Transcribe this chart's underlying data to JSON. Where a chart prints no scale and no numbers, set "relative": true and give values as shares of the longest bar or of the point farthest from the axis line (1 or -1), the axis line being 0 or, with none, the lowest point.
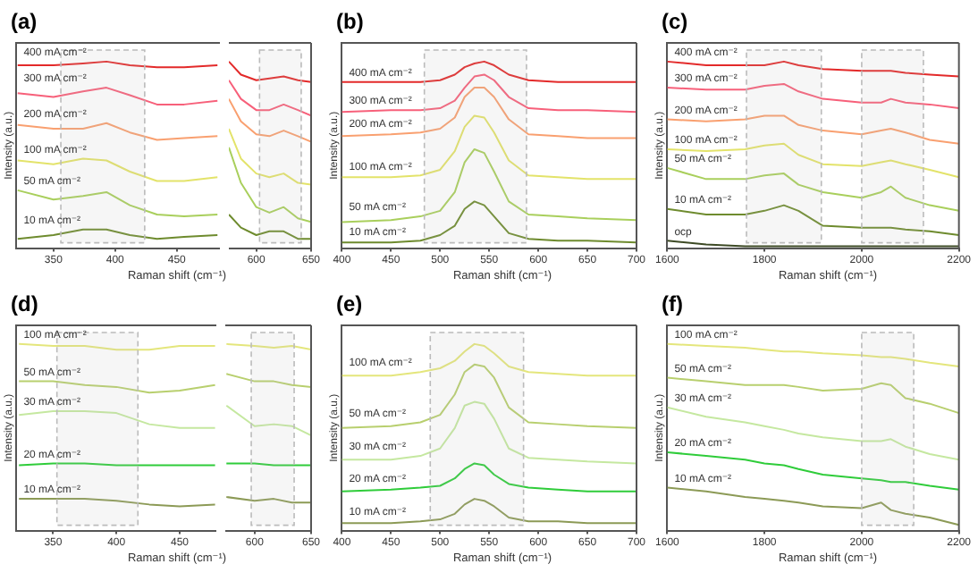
{
  "chart_data": [
    {
      "type": "line",
      "title": "(a)",
      "xlabel": "Raman shift (cm⁻¹)",
      "ylabel": "Intensity (a.u.)",
      "relative": true,
      "marker": "none",
      "xlim": [
        320,
        485
      ],
      "xticks": [
        350,
        400,
        450
      ],
      "x": [
        321,
        350,
        374,
        393,
        412,
        434,
        456,
        483
      ],
      "bands": [
        {
          "axis": "x",
          "from": 356,
          "to": 424,
          "color": "#bbbbbb"
        }
      ],
      "series": [
        {
          "name": "400 mA cm⁻²",
          "color": "#e32a2a",
          "values": [
            0.98,
            0.98,
            0.99,
            1,
            0.98,
            0.97,
            0.97,
            0.98
          ]
        },
        {
          "name": "300 mA cm⁻²",
          "color": "#f7607a",
          "values": [
            0.83,
            0.81,
            0.84,
            0.86,
            0.82,
            0.77,
            0.77,
            0.79
          ]
        },
        {
          "name": "200 mA cm⁻²",
          "color": "#f9a070",
          "values": [
            0.66,
            0.64,
            0.64,
            0.67,
            0.62,
            0.58,
            0.59,
            0.6
          ]
        },
        {
          "name": "100 mA cm⁻²",
          "color": "#e3e36a",
          "values": [
            0.47,
            0.45,
            0.48,
            0.47,
            0.41,
            0.36,
            0.36,
            0.38
          ]
        },
        {
          "name": "50 mA cm⁻²",
          "color": "#a9cf5c",
          "values": [
            0.31,
            0.26,
            0.28,
            0.3,
            0.23,
            0.18,
            0.17,
            0.18
          ]
        },
        {
          "name": "10 mA cm⁻²",
          "color": "#6e8b2e",
          "values": [
            0.05,
            0.07,
            0.1,
            0.1,
            0.07,
            0.05,
            0.06,
            0.07
          ]
        }
      ]
    },
    {
      "type": "line",
      "relative": true,
      "marker": "none",
      "xlim": [
        575,
        650
      ],
      "xticks": [
        600,
        650
      ],
      "x": [
        575,
        586,
        600,
        612,
        625,
        638,
        650
      ],
      "bands": [
        {
          "axis": "x",
          "from": 603,
          "to": 641,
          "color": "#bbbbbb"
        }
      ],
      "series": [
        {
          "color": "#e32a2a",
          "values": [
            1.0,
            0.93,
            0.9,
            0.91,
            0.92,
            0.9,
            0.89
          ]
        },
        {
          "color": "#f7607a",
          "values": [
            0.9,
            0.8,
            0.74,
            0.74,
            0.77,
            0.74,
            0.71
          ]
        },
        {
          "color": "#f9a070",
          "values": [
            0.8,
            0.68,
            0.61,
            0.6,
            0.63,
            0.6,
            0.57
          ]
        },
        {
          "color": "#e3e36a",
          "values": [
            0.64,
            0.48,
            0.4,
            0.38,
            0.4,
            0.35,
            0.34
          ]
        },
        {
          "color": "#a9cf5c",
          "values": [
            0.54,
            0.35,
            0.22,
            0.19,
            0.22,
            0.16,
            0.14
          ]
        },
        {
          "color": "#6e8b2e",
          "values": [
            0.18,
            0.11,
            0.07,
            0.09,
            0.09,
            0.05,
            0.05
          ]
        }
      ]
    },
    {
      "type": "line",
      "title": "(b)",
      "xlabel": "Raman shift (cm⁻¹)",
      "ylabel": "Intensity (a.u.)",
      "relative": true,
      "marker": "none",
      "xlim": [
        400,
        700
      ],
      "xticks": [
        400,
        450,
        500,
        550,
        600,
        650,
        700
      ],
      "x": [
        400,
        450,
        480,
        500,
        515,
        525,
        535,
        545,
        555,
        570,
        590,
        620,
        650,
        700
      ],
      "bands": [
        {
          "axis": "x",
          "from": 484,
          "to": 588,
          "color": "#bbbbbb"
        }
      ],
      "series": [
        {
          "name": "400 mA cm⁻²",
          "color": "#e32a2a",
          "values": [
            0.89,
            0.89,
            0.89,
            0.9,
            0.93,
            0.97,
            0.99,
            1,
            0.98,
            0.93,
            0.9,
            0.89,
            0.89,
            0.89
          ]
        },
        {
          "name": "300 mA cm⁻²",
          "color": "#f7607a",
          "values": [
            0.73,
            0.74,
            0.74,
            0.75,
            0.79,
            0.86,
            0.92,
            0.93,
            0.9,
            0.81,
            0.75,
            0.74,
            0.74,
            0.73
          ]
        },
        {
          "name": "200 mA cm⁻²",
          "color": "#f9a070",
          "values": [
            0.6,
            0.61,
            0.62,
            0.64,
            0.7,
            0.81,
            0.86,
            0.86,
            0.81,
            0.69,
            0.61,
            0.6,
            0.59,
            0.59
          ]
        },
        {
          "name": "100 mA cm⁻²",
          "color": "#e3e36a",
          "values": [
            0.38,
            0.38,
            0.39,
            0.42,
            0.52,
            0.65,
            0.71,
            0.7,
            0.62,
            0.47,
            0.39,
            0.38,
            0.37,
            0.37
          ]
        },
        {
          "name": "50 mA cm⁻²",
          "color": "#a9cf5c",
          "values": [
            0.14,
            0.15,
            0.17,
            0.2,
            0.3,
            0.46,
            0.53,
            0.51,
            0.41,
            0.25,
            0.18,
            0.17,
            0.16,
            0.15
          ]
        },
        {
          "name": "10 mA cm⁻²",
          "color": "#6e8b2e",
          "values": [
            0.03,
            0.03,
            0.04,
            0.07,
            0.12,
            0.21,
            0.25,
            0.23,
            0.17,
            0.08,
            0.05,
            0.04,
            0.04,
            0.03
          ]
        }
      ]
    },
    {
      "type": "line",
      "title": "(c)",
      "xlabel": "Raman shift (cm⁻¹)",
      "ylabel": "Intensity (a.u.)",
      "relative": true,
      "marker": "none",
      "xlim": [
        1600,
        2200
      ],
      "xticks": [
        1600,
        1800,
        2000,
        2200
      ],
      "x": [
        1600,
        1680,
        1760,
        1800,
        1840,
        1870,
        1920,
        2000,
        2040,
        2060,
        2090,
        2140,
        2200
      ],
      "bands": [
        {
          "axis": "x",
          "from": 1763,
          "to": 1917,
          "color": "#bbbbbb"
        },
        {
          "axis": "x",
          "from": 2000,
          "to": 2127,
          "color": "#bbbbbb"
        }
      ],
      "series": [
        {
          "name": "400 mA cm⁻²",
          "color": "#e32a2a",
          "values": [
            1.0,
            0.98,
            0.98,
            0.98,
            1.0,
            0.98,
            0.96,
            0.95,
            0.95,
            0.95,
            0.94,
            0.93,
            0.92
          ]
        },
        {
          "name": "300 mA cm⁻²",
          "color": "#f7607a",
          "values": [
            0.86,
            0.85,
            0.85,
            0.87,
            0.88,
            0.84,
            0.8,
            0.78,
            0.78,
            0.8,
            0.78,
            0.77,
            0.75
          ]
        },
        {
          "name": "200 mA cm⁻²",
          "color": "#f9a070",
          "values": [
            0.69,
            0.68,
            0.69,
            0.71,
            0.71,
            0.66,
            0.63,
            0.61,
            0.63,
            0.64,
            0.62,
            0.58,
            0.56
          ]
        },
        {
          "name": "100 mA cm⁻²",
          "color": "#e3e36a",
          "values": [
            0.53,
            0.52,
            0.53,
            0.55,
            0.56,
            0.5,
            0.45,
            0.44,
            0.46,
            0.47,
            0.45,
            0.42,
            0.38
          ]
        },
        {
          "name": "50 mA cm⁻²",
          "color": "#a9cf5c",
          "values": [
            0.43,
            0.37,
            0.37,
            0.39,
            0.4,
            0.34,
            0.3,
            0.27,
            0.3,
            0.33,
            0.27,
            0.23,
            0.2
          ]
        },
        {
          "name": "10 mA cm⁻²",
          "color": "#6e8b2e",
          "values": [
            0.21,
            0.18,
            0.18,
            0.2,
            0.23,
            0.2,
            0.12,
            0.11,
            0.11,
            0.11,
            0.1,
            0.09,
            0.07
          ]
        },
        {
          "name": "ocp",
          "color": "#3d4a25",
          "values": [
            0.04,
            0.02,
            0.01,
            0.01,
            0.01,
            0.01,
            0.01,
            0.01,
            0.01,
            0.01,
            0.01,
            0.01,
            0.01
          ]
        }
      ]
    },
    {
      "type": "line",
      "title": "(d)",
      "xlabel": "Raman shift (cm⁻¹)",
      "ylabel": "Intensity (a.u.)",
      "relative": true,
      "marker": "none",
      "xlim": [
        321,
        479
      ],
      "xticks": [
        350,
        400,
        450
      ],
      "x": [
        323,
        350,
        375,
        400,
        426,
        450,
        478
      ],
      "bands": [
        {
          "axis": "x",
          "from": 353,
          "to": 417,
          "color": "#bbbbbb"
        }
      ],
      "series": [
        {
          "name": "100 mA cm⁻²",
          "color": "#e4e67c",
          "values": [
            1.0,
            0.99,
            0.99,
            0.97,
            0.97,
            0.99,
            0.99
          ]
        },
        {
          "name": "50 mA cm⁻²",
          "color": "#b8cf6e",
          "values": [
            0.8,
            0.8,
            0.78,
            0.77,
            0.74,
            0.75,
            0.78
          ]
        },
        {
          "name": "30 mA cm⁻²",
          "color": "#c5e8a0",
          "values": [
            0.62,
            0.64,
            0.64,
            0.63,
            0.57,
            0.55,
            0.55
          ]
        },
        {
          "name": "20 mA cm⁻²",
          "color": "#2fcc3a",
          "values": [
            0.35,
            0.36,
            0.36,
            0.35,
            0.35,
            0.35,
            0.35
          ]
        },
        {
          "name": "10 mA cm⁻²",
          "color": "#8c9a56",
          "values": [
            0.17,
            0.17,
            0.17,
            0.16,
            0.14,
            0.13,
            0.14
          ]
        }
      ]
    },
    {
      "type": "line",
      "relative": true,
      "marker": "none",
      "xlim": [
        574,
        650
      ],
      "xticks": [
        600,
        650
      ],
      "x": [
        575,
        600,
        617,
        633,
        650
      ],
      "bands": [
        {
          "axis": "x",
          "from": 597,
          "to": 635,
          "color": "#bbbbbb"
        }
      ],
      "series": [
        {
          "color": "#e4e67c",
          "values": [
            1.0,
            0.99,
            0.98,
            0.99,
            0.97
          ]
        },
        {
          "color": "#b8cf6e",
          "values": [
            0.84,
            0.8,
            0.8,
            0.78,
            0.77
          ]
        },
        {
          "color": "#c5e8a0",
          "values": [
            0.67,
            0.56,
            0.57,
            0.56,
            0.51
          ]
        },
        {
          "color": "#2fcc3a",
          "values": [
            0.36,
            0.36,
            0.35,
            0.35,
            0.35
          ]
        },
        {
          "color": "#8c9a56",
          "values": [
            0.18,
            0.16,
            0.17,
            0.15,
            0.15
          ]
        }
      ]
    },
    {
      "type": "line",
      "title": "(e)",
      "xlabel": "Raman shift (cm⁻¹)",
      "ylabel": "Intensity (a.u.)",
      "relative": true,
      "marker": "none",
      "xlim": [
        400,
        700
      ],
      "xticks": [
        400,
        450,
        500,
        550,
        600,
        650,
        700
      ],
      "x": [
        400,
        450,
        480,
        500,
        515,
        525,
        535,
        545,
        555,
        570,
        590,
        620,
        650,
        700
      ],
      "bands": [
        {
          "axis": "x",
          "from": 490,
          "to": 585,
          "color": "#bbbbbb"
        }
      ],
      "series": [
        {
          "name": "100 mA cm⁻²",
          "color": "#e4e67c",
          "values": [
            0.83,
            0.83,
            0.85,
            0.87,
            0.91,
            0.96,
            1.0,
            0.99,
            0.95,
            0.88,
            0.85,
            0.84,
            0.83,
            0.83
          ]
        },
        {
          "name": "50 mA cm⁻²",
          "color": "#b8cf6e",
          "values": [
            0.55,
            0.56,
            0.58,
            0.62,
            0.73,
            0.85,
            0.89,
            0.88,
            0.82,
            0.66,
            0.58,
            0.57,
            0.56,
            0.55
          ]
        },
        {
          "name": "30 mA cm⁻²",
          "color": "#c5e8a0",
          "values": [
            0.38,
            0.38,
            0.4,
            0.44,
            0.55,
            0.67,
            0.69,
            0.68,
            0.6,
            0.44,
            0.39,
            0.38,
            0.37,
            0.36
          ]
        },
        {
          "name": "20 mA cm⁻²",
          "color": "#2fcc3a",
          "values": [
            0.21,
            0.22,
            0.23,
            0.24,
            0.28,
            0.33,
            0.36,
            0.35,
            0.3,
            0.25,
            0.23,
            0.22,
            0.21,
            0.21
          ]
        },
        {
          "name": "10 mA cm⁻²",
          "color": "#8c9a56",
          "values": [
            0.04,
            0.04,
            0.05,
            0.06,
            0.09,
            0.14,
            0.17,
            0.16,
            0.13,
            0.07,
            0.05,
            0.05,
            0.04,
            0.04
          ]
        }
      ]
    },
    {
      "type": "line",
      "title": "(f)",
      "xlabel": "Raman shift (cm⁻¹)",
      "ylabel": "Intensity (a.u.)",
      "relative": true,
      "marker": "none",
      "xlim": [
        1600,
        2200
      ],
      "xticks": [
        1600,
        1800,
        2000,
        2200
      ],
      "x": [
        1600,
        1680,
        1760,
        1800,
        1840,
        1870,
        1920,
        2000,
        2040,
        2060,
        2090,
        2140,
        2200
      ],
      "bands": [
        {
          "axis": "x",
          "from": 2000,
          "to": 2107,
          "color": "#bbbbbb"
        }
      ],
      "series": [
        {
          "name": "100 mA cm⁻²",
          "color": "#e4e67c",
          "values": [
            1.0,
            0.99,
            0.98,
            0.97,
            0.96,
            0.96,
            0.95,
            0.94,
            0.93,
            0.93,
            0.92,
            0.9,
            0.88
          ]
        },
        {
          "name": "50 mA cm⁻²",
          "color": "#b8cf6e",
          "values": [
            0.82,
            0.8,
            0.78,
            0.78,
            0.78,
            0.77,
            0.75,
            0.76,
            0.79,
            0.78,
            0.71,
            0.68,
            0.63
          ]
        },
        {
          "name": "30 mA cm⁻²",
          "color": "#c5e8a0",
          "values": [
            0.66,
            0.61,
            0.58,
            0.56,
            0.54,
            0.52,
            0.5,
            0.48,
            0.48,
            0.49,
            0.45,
            0.41,
            0.38
          ]
        },
        {
          "name": "20 mA cm⁻²",
          "color": "#2fcc3a",
          "values": [
            0.42,
            0.4,
            0.38,
            0.36,
            0.35,
            0.33,
            0.3,
            0.28,
            0.27,
            0.26,
            0.26,
            0.24,
            0.22
          ]
        },
        {
          "name": "10 mA cm⁻²",
          "color": "#8c9a56",
          "values": [
            0.23,
            0.21,
            0.18,
            0.17,
            0.16,
            0.15,
            0.13,
            0.12,
            0.15,
            0.11,
            0.09,
            0.07,
            0.03
          ]
        }
      ]
    }
  ]
}
